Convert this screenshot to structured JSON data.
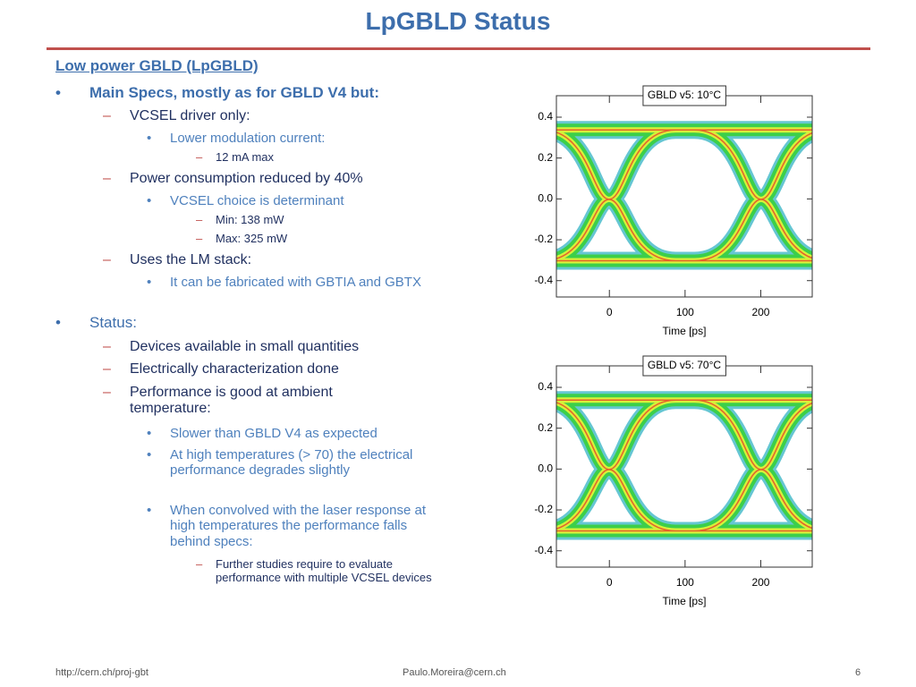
{
  "header": {
    "title": "LpGBLD Status"
  },
  "body": [
    "Low power GBLD (LpGBLD)",
    "Main Specs, mostly as for GBLD V4 but:",
    "VCSEL driver only:",
    "Lower modulation current:",
    "12 mA max",
    "Power consumption reduced by 40%",
    "VCSEL choice is determinant",
    "Min: 138 mW",
    "Max: 325 mW",
    "Uses the LM stack:",
    "It can be fabricated with GBTIA and GBTX",
    "Status:",
    "Devices available in small quantities",
    "Electrically characterization done",
    "Performance is good at ambient temperature:",
    "Slower than GBLD V4 as expected",
    "At high temperatures (> 70) the electrical performance degrades slightly",
    "When convolved with the laser response at high temperatures the performance falls behind specs:",
    "Further studies require to evaluate performance with multiple VCSEL devices"
  ],
  "chart_data": [
    {
      "type": "eye-diagram",
      "title": "GBLD v5: 10°C",
      "xlabel": "Time [ps]",
      "xlim": [
        -70,
        268
      ],
      "ylim": [
        -0.48,
        0.505
      ],
      "xticks": [
        0,
        100,
        200
      ],
      "yticks": [
        0.4,
        0.2,
        {
          "value": 0,
          "label": "0.0"
        },
        -0.2,
        -0.4
      ]
    },
    {
      "type": "eye-diagram",
      "title": "GBLD v5: 70°C",
      "xlabel": "Time [ps]",
      "xlim": [
        -70,
        268
      ],
      "ylim": [
        -0.48,
        0.505
      ],
      "xticks": [
        0,
        100,
        200
      ],
      "yticks": [
        0.4,
        0.2,
        {
          "value": 0,
          "label": "0.0"
        },
        -0.2,
        -0.4
      ]
    }
  ],
  "footer": {
    "url": "http://cern.ch/proj-gbt",
    "email": "Paulo.Moreira@cern.ch",
    "page": "6"
  }
}
